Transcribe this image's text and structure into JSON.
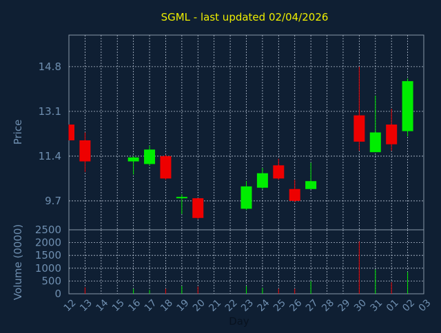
{
  "chart_data": {
    "type": "candlestick",
    "title": "SGML - last updated 02/04/2026",
    "xlabel": "Day",
    "ylabel_price": "Price",
    "ylabel_volume": "Volume (0000)",
    "price_ticks": [
      "14.8",
      "13.1",
      "11.4",
      "9.7"
    ],
    "price_tick_values": [
      14.8,
      13.1,
      11.4,
      9.7
    ],
    "price_range": [
      8.6,
      16.0
    ],
    "volume_ticks": [
      "2500",
      "2000",
      "1500",
      "1000",
      "500",
      "0"
    ],
    "volume_tick_values": [
      2500,
      2000,
      1500,
      1000,
      500,
      0
    ],
    "volume_range": [
      0,
      2500
    ],
    "grid": true,
    "day_labels": [
      "12",
      "13",
      "14",
      "15",
      "16",
      "17",
      "18",
      "19",
      "20",
      "21",
      "22",
      "23",
      "24",
      "25",
      "26",
      "27",
      "28",
      "29",
      "30",
      "31",
      "01",
      "02",
      "03"
    ],
    "candles": [
      {
        "day": "12",
        "open": 12.6,
        "high": 12.6,
        "low": 12.0,
        "close": 12.0,
        "volume": 0
      },
      {
        "day": "13",
        "open": 12.0,
        "high": 12.3,
        "low": 10.8,
        "close": 11.2,
        "volume": 250
      },
      {
        "day": "16",
        "open": 11.2,
        "high": 11.4,
        "low": 10.7,
        "close": 11.35,
        "volume": 200
      },
      {
        "day": "17",
        "open": 11.1,
        "high": 11.8,
        "low": 11.05,
        "close": 11.65,
        "volume": 150
      },
      {
        "day": "18",
        "open": 11.4,
        "high": 11.45,
        "low": 10.5,
        "close": 10.55,
        "volume": 200
      },
      {
        "day": "19",
        "open": 9.8,
        "high": 9.95,
        "low": 9.2,
        "close": 9.85,
        "volume": 300
      },
      {
        "day": "20",
        "open": 9.8,
        "high": 9.8,
        "low": 9.0,
        "close": 9.05,
        "volume": 280
      },
      {
        "day": "23",
        "open": 9.4,
        "high": 10.45,
        "low": 9.35,
        "close": 10.25,
        "volume": 300
      },
      {
        "day": "24",
        "open": 10.2,
        "high": 10.95,
        "low": 10.15,
        "close": 10.75,
        "volume": 230
      },
      {
        "day": "25",
        "open": 11.05,
        "high": 11.3,
        "low": 10.5,
        "close": 10.55,
        "volume": 200
      },
      {
        "day": "26",
        "open": 10.15,
        "high": 10.5,
        "low": 9.65,
        "close": 9.7,
        "volume": 200
      },
      {
        "day": "27",
        "open": 10.15,
        "high": 11.15,
        "low": 10.15,
        "close": 10.45,
        "volume": 500
      },
      {
        "day": "30",
        "open": 12.95,
        "high": 14.8,
        "low": 11.6,
        "close": 11.95,
        "volume": 2050
      },
      {
        "day": "31",
        "open": 11.55,
        "high": 13.7,
        "low": 11.55,
        "close": 12.3,
        "volume": 950
      },
      {
        "day": "01",
        "open": 12.6,
        "high": 13.2,
        "low": 11.6,
        "close": 11.85,
        "volume": 450
      },
      {
        "day": "02",
        "open": 12.35,
        "high": 14.35,
        "low": 12.15,
        "close": 14.25,
        "volume": 850
      }
    ],
    "up_color": "#00ee00",
    "down_color": "#ee0000",
    "title_color": "#eeee00",
    "axis_text_color": "#6f8fb0",
    "grid_color": "#b8c4d4"
  }
}
